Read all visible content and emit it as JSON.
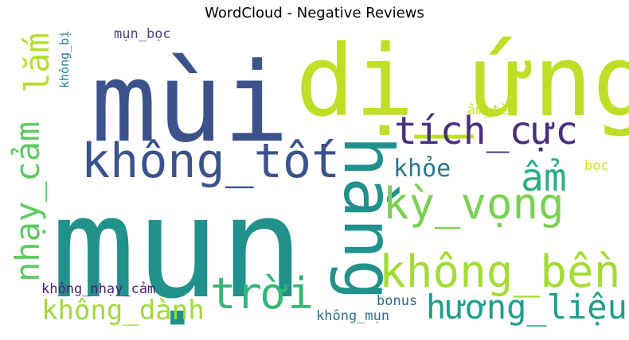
{
  "chart_data": {
    "type": "wordcloud",
    "title": "WordCloud - Negative Reviews",
    "background": "#ffffff",
    "words": [
      {
        "text": "mụn",
        "color": "#21918c"
      },
      {
        "text": "mùi",
        "color": "#3b528b"
      },
      {
        "text": "dị_ứng",
        "color": "#bddf26"
      },
      {
        "text": "hàng",
        "color": "#21918c"
      },
      {
        "text": "không_tốt",
        "color": "#3b528b"
      },
      {
        "text": "tích_cực",
        "color": "#472f7d"
      },
      {
        "text": "kỳ_vọng",
        "color": "#7ad151"
      },
      {
        "text": "không_bền",
        "color": "#a5db36"
      },
      {
        "text": "nhạy_cảm",
        "color": "#5ec962"
      },
      {
        "text": "lắm",
        "color": "#b5de2b"
      },
      {
        "text": "trời",
        "color": "#35b779"
      },
      {
        "text": "ẩm",
        "color": "#2ab07f"
      },
      {
        "text": "hương_liệu",
        "color": "#1f9e89"
      },
      {
        "text": "không_dành",
        "color": "#a0da39"
      },
      {
        "text": "khỏe",
        "color": "#2a788e"
      },
      {
        "text": "mụn_bọc",
        "color": "#3e4a89"
      },
      {
        "text": "không_bị",
        "color": "#25848e"
      },
      {
        "text": "không_nhạy_cảm",
        "color": "#482475"
      },
      {
        "text": "ẩm_tè",
        "color": "#c8e020"
      },
      {
        "text": "bọc",
        "color": "#d0e11c"
      },
      {
        "text": "bonus",
        "color": "#31688e"
      },
      {
        "text": "không_mụn",
        "color": "#2c728e"
      }
    ]
  }
}
